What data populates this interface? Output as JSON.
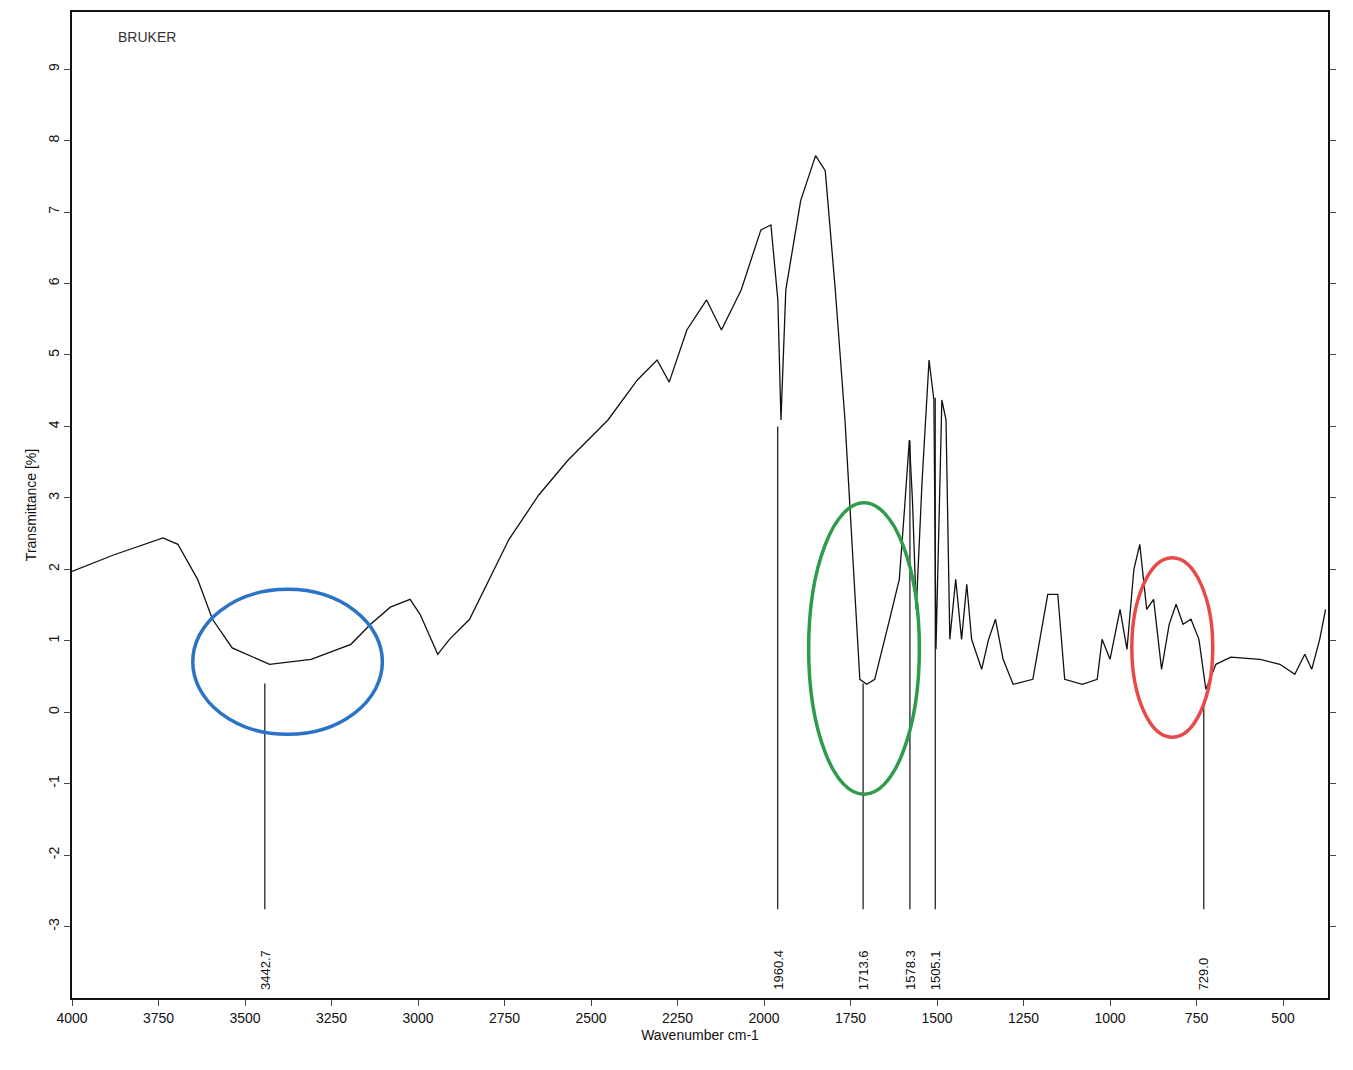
{
  "chart_data": {
    "type": "line",
    "brand": "BRUKER",
    "x_label": "Wavenumber cm-1",
    "y_label": "Transmittance [%]",
    "color": "#111111",
    "x": [
      4000,
      3880,
      3737,
      3694,
      3637,
      3594,
      3537,
      3429,
      3309,
      3194,
      3137,
      3080,
      3023,
      2994,
      2943,
      2909,
      2851,
      2794,
      2737,
      2651,
      2566,
      2451,
      2366,
      2309,
      2274,
      2223,
      2166,
      2123,
      2066,
      2009,
      1980,
      1960,
      1951,
      1937,
      1894,
      1851,
      1823,
      1794,
      1766,
      1743,
      1723,
      1703,
      1680,
      1637,
      1609,
      1594,
      1580,
      1571,
      1560,
      1543,
      1523,
      1509,
      1503,
      1486,
      1474,
      1463,
      1446,
      1429,
      1414,
      1400,
      1371,
      1351,
      1331,
      1309,
      1280,
      1223,
      1180,
      1151,
      1131,
      1080,
      1037,
      1023,
      1000,
      971,
      951,
      931,
      914,
      894,
      874,
      851,
      829,
      809,
      789,
      766,
      743,
      723,
      694,
      651,
      566,
      509,
      466,
      437,
      417,
      394,
      377
    ],
    "values": [
      1.97,
      2.2,
      2.44,
      2.35,
      1.86,
      1.3,
      0.9,
      0.67,
      0.74,
      0.95,
      1.23,
      1.47,
      1.58,
      1.37,
      0.81,
      1.02,
      1.3,
      1.86,
      2.42,
      3.04,
      3.53,
      4.09,
      4.65,
      4.93,
      4.62,
      5.35,
      5.77,
      5.35,
      5.91,
      6.75,
      6.82,
      5.77,
      4.09,
      5.91,
      7.16,
      7.79,
      7.58,
      5.91,
      4.09,
      2.14,
      0.46,
      0.39,
      0.46,
      1.3,
      1.86,
      2.84,
      3.81,
      2.97,
      1.44,
      3.25,
      4.93,
      4.37,
      0.88,
      4.37,
      4.09,
      1.02,
      1.86,
      1.02,
      1.79,
      1.02,
      0.6,
      1.02,
      1.3,
      0.74,
      0.39,
      0.46,
      1.65,
      1.65,
      0.46,
      0.39,
      0.46,
      1.02,
      0.74,
      1.44,
      0.88,
      2.0,
      2.35,
      1.44,
      1.58,
      0.6,
      1.23,
      1.51,
      1.23,
      1.3,
      1.02,
      0.32,
      0.67,
      0.77,
      0.74,
      0.67,
      0.53,
      0.81,
      0.6,
      1.02,
      1.44
    ],
    "xlim": [
      4000,
      370
    ],
    "xticks": [
      4000,
      3750,
      3500,
      3250,
      3000,
      2750,
      2500,
      2250,
      2000,
      1750,
      1500,
      1250,
      1000,
      750,
      500
    ],
    "ylim": [
      -4,
      9.8
    ],
    "yticks": [
      -3,
      -2,
      -1,
      0,
      1,
      2,
      3,
      4,
      5,
      6,
      7,
      8,
      9
    ],
    "grid": false,
    "annotations": [
      {
        "x": 3442.7,
        "y": 0.4,
        "text": "3442.7"
      },
      {
        "x": 1960.4,
        "y": 4.0,
        "text": "1960.4"
      },
      {
        "x": 1713.6,
        "y": 0.4,
        "text": "1713.6"
      },
      {
        "x": 1578.3,
        "y": 3.8,
        "text": "1578.3"
      },
      {
        "x": 1505.1,
        "y": 4.4,
        "text": "1505.1"
      },
      {
        "x": 729.0,
        "y": 0.1,
        "text": "729.0"
      }
    ],
    "highlights": [
      {
        "x": [
          3651,
          3103
        ],
        "y": [
          -0.31,
          1.72
        ],
        "color": "#2b73c7"
      },
      {
        "x": [
          1871,
          1551
        ],
        "y": [
          -1.15,
          2.93
        ],
        "color": "#2e9c4a"
      },
      {
        "x": [
          937,
          703
        ],
        "y": [
          -0.35,
          2.16
        ],
        "color": "#e84a4a"
      }
    ]
  }
}
